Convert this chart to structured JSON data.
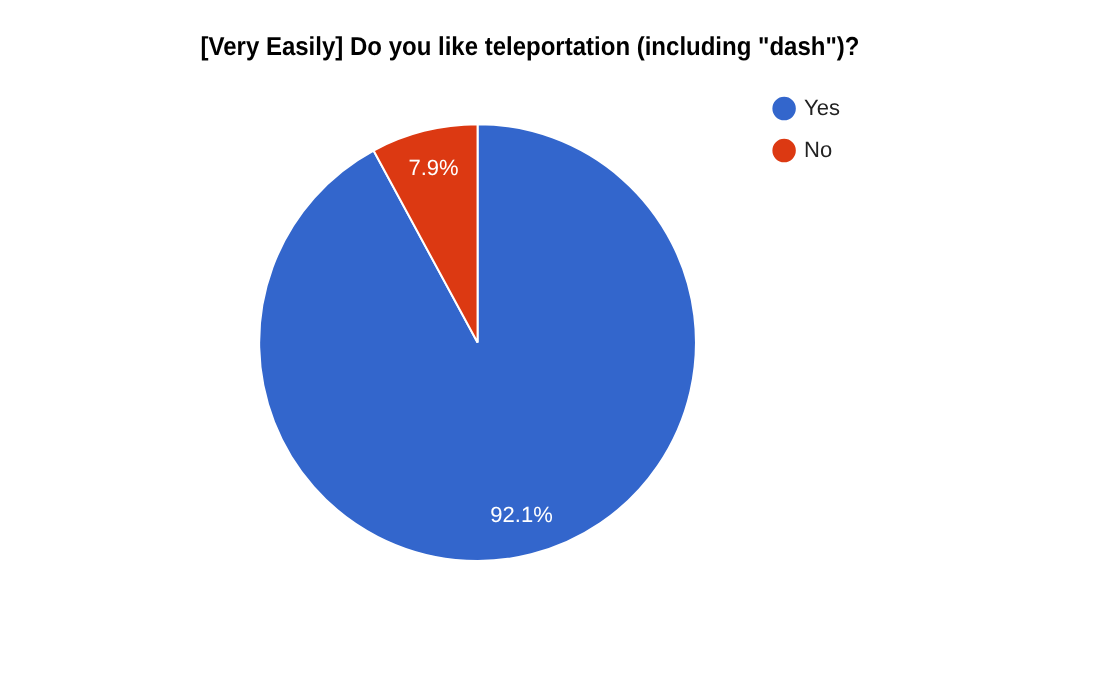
{
  "chart_data": {
    "type": "pie",
    "title": "[Very Easily] Do you like teleportation (including \"dash\")?",
    "categories": [
      "Yes",
      "No"
    ],
    "values": [
      92.1,
      7.9
    ],
    "value_labels": [
      "92.1%",
      "7.9%"
    ],
    "colors": [
      "#3366cc",
      "#dc3912"
    ],
    "legend": "top right"
  }
}
